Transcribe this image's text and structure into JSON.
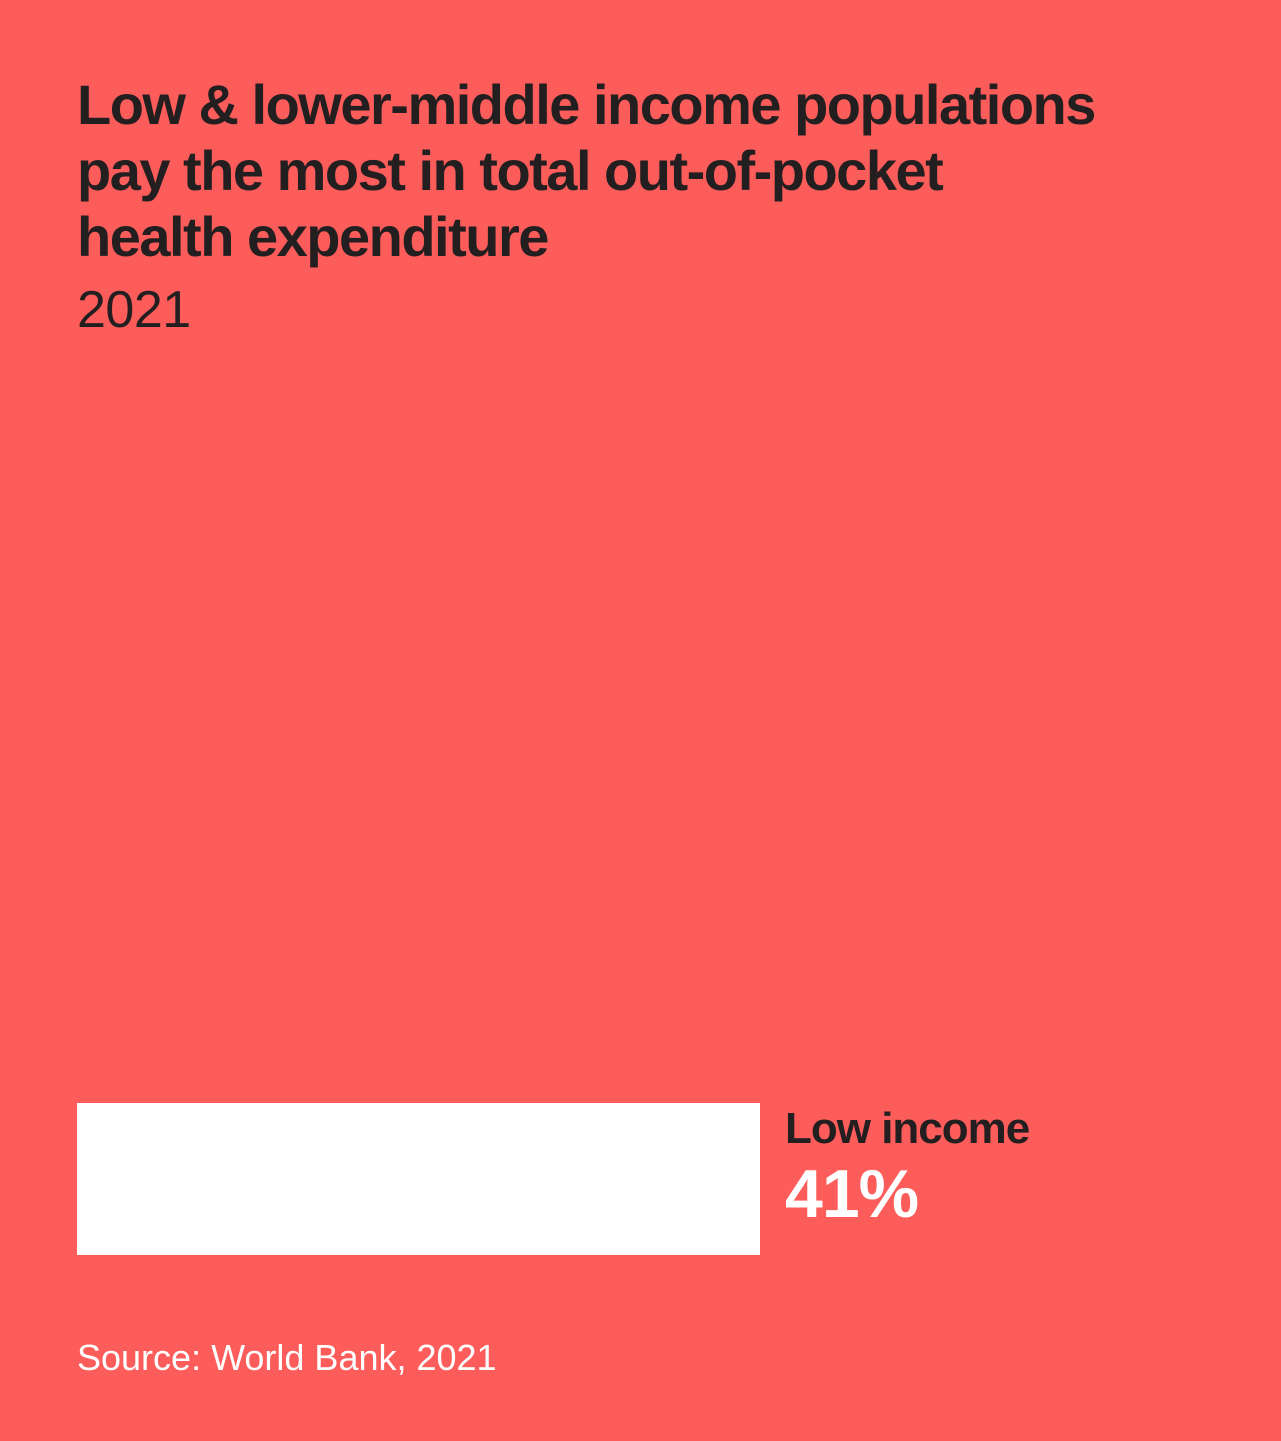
{
  "page": {
    "background_color": "#FC5D5A",
    "text_dark_color": "#231F20",
    "text_light_color": "#FFFFFF"
  },
  "header": {
    "title": "Low & lower-middle income populations pay the most in total out-of-pocket health expenditure",
    "title_lines": [
      "Low & lower-middle income populations",
      "pay the most in total out-of-pocket",
      "health expenditure"
    ],
    "subtitle": "2021"
  },
  "chart_data": {
    "type": "bar",
    "orientation": "horizontal",
    "title": "Low & lower-middle income populations pay the most in total out-of-pocket health expenditure",
    "subtitle": "2021",
    "categories": [
      "Low income"
    ],
    "values": [
      41
    ],
    "unit": "%",
    "value_labels": [
      "41%"
    ],
    "xlabel": "",
    "ylabel": "",
    "xlim": [
      0,
      41
    ],
    "grid": false,
    "legend": false,
    "bar_color": "#FFFFFF",
    "category_label_color": "#231F20",
    "value_label_color": "#FFFFFF",
    "background_color": "#FC5D5A"
  },
  "footer": {
    "source": "Source: World Bank, 2021"
  }
}
